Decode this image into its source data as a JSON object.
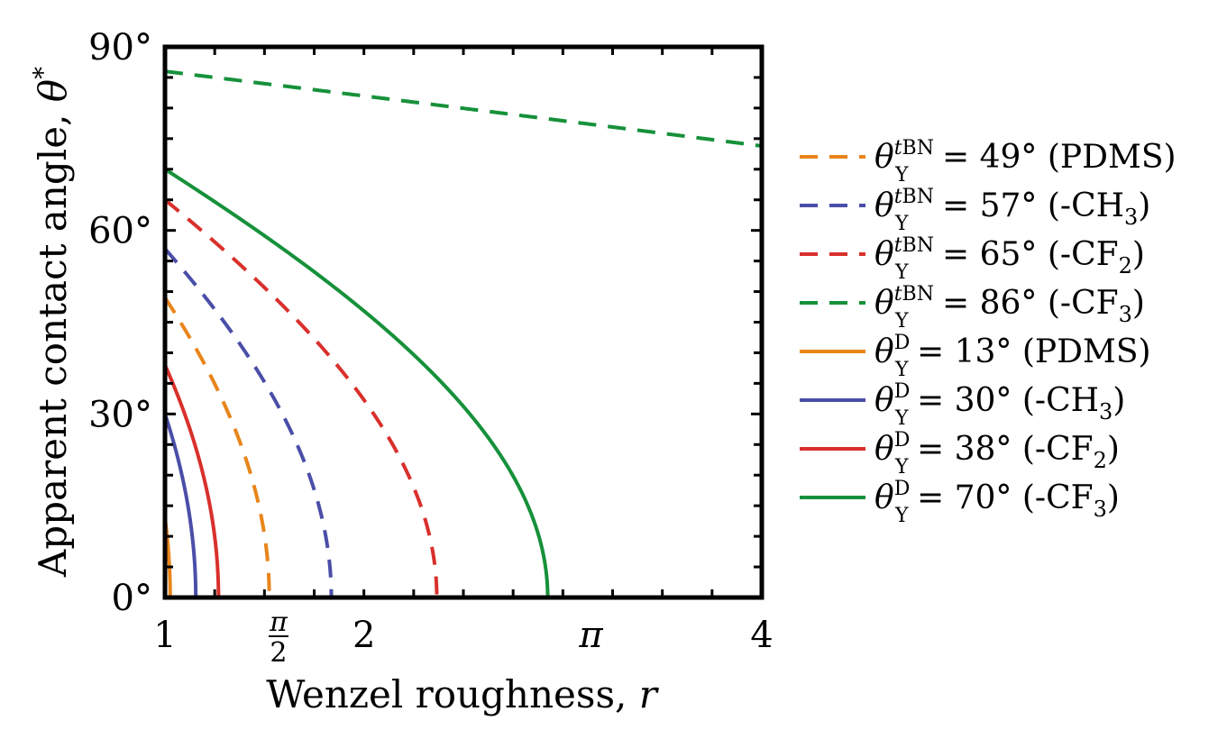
{
  "chart_data": {
    "type": "line",
    "xlabel": "Wenzel roughness, r",
    "ylabel": "Apparent contact angle, θ*",
    "xlim": [
      1,
      4
    ],
    "ylim": [
      0,
      90
    ],
    "x_ticks": [
      {
        "value": 1,
        "label": "1"
      },
      {
        "value": 1.5708,
        "label": "π/2"
      },
      {
        "value": 2,
        "label": "2"
      },
      {
        "value": 3.1416,
        "label": "π"
      },
      {
        "value": 4,
        "label": "4"
      }
    ],
    "y_ticks": [
      {
        "value": 0,
        "label": "0°"
      },
      {
        "value": 30,
        "label": "30°"
      },
      {
        "value": 60,
        "label": "60°"
      },
      {
        "value": 90,
        "label": "90°"
      }
    ],
    "grid": false,
    "legend_position": "right",
    "model": "cos(θ*) = r · cos(θY), clipped at θ* = 0°",
    "series": [
      {
        "label_sup": "tBN",
        "theta_y": 49,
        "value_text": "49°",
        "suffix": "(PDMS)",
        "sub": "",
        "style": "dashed",
        "color": "#E8851A"
      },
      {
        "label_sup": "tBN",
        "theta_y": 57,
        "value_text": "57°",
        "suffix": "(-CH",
        "sub": "3",
        "style": "dashed",
        "color": "#4A4EA8"
      },
      {
        "label_sup": "tBN",
        "theta_y": 65,
        "value_text": "65°",
        "suffix": "(-CF",
        "sub": "2",
        "style": "dashed",
        "color": "#D9302C"
      },
      {
        "label_sup": "tBN",
        "theta_y": 86,
        "value_text": "86°",
        "suffix": "(-CF",
        "sub": "3",
        "style": "dashed",
        "color": "#16913A"
      },
      {
        "label_sup": "D",
        "theta_y": 13,
        "value_text": "13°",
        "suffix": "(PDMS)",
        "sub": "",
        "style": "solid",
        "color": "#E8851A"
      },
      {
        "label_sup": "D",
        "theta_y": 30,
        "value_text": "30°",
        "suffix": "(-CH",
        "sub": "3",
        "style": "solid",
        "color": "#4A4EA8"
      },
      {
        "label_sup": "D",
        "theta_y": 38,
        "value_text": "38°",
        "suffix": "(-CF",
        "sub": "2",
        "style": "solid",
        "color": "#D9302C"
      },
      {
        "label_sup": "D",
        "theta_y": 70,
        "value_text": "70°",
        "suffix": "(-CF",
        "sub": "3",
        "style": "solid",
        "color": "#16913A"
      }
    ]
  }
}
